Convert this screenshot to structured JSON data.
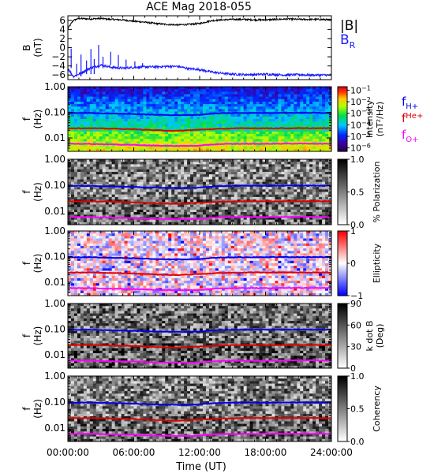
{
  "title": "ACE Mag 2018-055",
  "xlabel": "Time (UT)",
  "x_ticks": [
    "00:00:00",
    "06:00:00",
    "12:00:00",
    "18:00:00",
    "24:00:00"
  ],
  "colors": {
    "B_total": "#000000",
    "B_R": "#1a1aff",
    "f_H": "#0000ee",
    "f_He": "#e00000",
    "f_O": "#ff00ff"
  },
  "chart_data": [
    {
      "type": "line",
      "ylabel": "B",
      "yunit": "(nT)",
      "ylim": [
        -7,
        7
      ],
      "yticks": [
        "6",
        "4",
        "2",
        "0",
        "−2",
        "−4",
        "−6"
      ],
      "ytick_values": [
        6,
        4,
        2,
        0,
        -2,
        -4,
        -6
      ],
      "legend": [
        {
          "label": "|B|"
        },
        {
          "label": "B",
          "sub": "R"
        }
      ],
      "x_hours": [
        0,
        0.5,
        1,
        2,
        3,
        4,
        5,
        6,
        7,
        8,
        9,
        10,
        11,
        12,
        13,
        14,
        15,
        16,
        17,
        18,
        19,
        20,
        21,
        22,
        23,
        24
      ],
      "series": [
        {
          "values": [
            4.2,
            6.0,
            6.4,
            6.3,
            6.4,
            6.2,
            6.1,
            5.8,
            5.6,
            5.3,
            5.1,
            5.0,
            5.1,
            5.3,
            5.9,
            6.1,
            6.2,
            6.2,
            6.1,
            6.1,
            6.2,
            6.3,
            6.2,
            6.2,
            6.2,
            6.1
          ]
        },
        {
          "values": [
            -4.5,
            -6.3,
            -5.8,
            -4.5,
            -3.8,
            -4.3,
            -4.5,
            -4.3,
            -4.2,
            -4.2,
            -4.1,
            -4.1,
            -4.6,
            -4.8,
            -5.3,
            -5.6,
            -5.8,
            -5.9,
            -5.9,
            -5.8,
            -5.9,
            -6.0,
            -5.9,
            -6.0,
            -6.0,
            -6.0
          ]
        }
      ],
      "spikes": [
        {
          "x": 0.3,
          "y": -0.2
        },
        {
          "x": 0.8,
          "y": -3.5
        },
        {
          "x": 1.2,
          "y": -1.5
        },
        {
          "x": 1.7,
          "y": -2.8
        },
        {
          "x": 2.1,
          "y": -0.3
        },
        {
          "x": 2.4,
          "y": -2.5
        },
        {
          "x": 2.8,
          "y": 0.6
        },
        {
          "x": 3.2,
          "y": -2.0
        },
        {
          "x": 3.9,
          "y": -0.9
        },
        {
          "x": 4.6,
          "y": -1.6
        },
        {
          "x": 5.3,
          "y": -2.6
        },
        {
          "x": 6.1,
          "y": -3.0
        },
        {
          "x": 6.8,
          "y": -3.4
        }
      ]
    },
    {
      "type": "heatmap",
      "ylabel": "f",
      "yunit": "(Hz)",
      "yscale": "log",
      "ylim": [
        0.003,
        1.0
      ],
      "yticks": [
        "1.00",
        "0.10",
        "0.01"
      ],
      "ytick_values": [
        1.0,
        0.1,
        0.01
      ],
      "colorbar": {
        "label": "Intensity",
        "unit": "(nT²/Hz)",
        "scale": "log",
        "ticks": [
          {
            "base": "10",
            "exp": "−1",
            "value": 0.1
          },
          {
            "base": "10",
            "exp": "−2",
            "value": 0.01
          },
          {
            "base": "10",
            "exp": "−3",
            "value": 0.001
          },
          {
            "base": "10",
            "exp": "−4",
            "value": 0.0001
          },
          {
            "base": "10",
            "exp": "−5",
            "value": 1e-05
          },
          {
            "base": "10",
            "exp": "−6",
            "value": 1e-06
          }
        ],
        "range": [
          5e-07,
          0.2
        ],
        "palette": "rainbow"
      },
      "legend": [
        {
          "label": "f",
          "sub": "H+"
        },
        {
          "label": "f",
          "sup": "He+"
        },
        {
          "label": "f",
          "sub": "O+"
        }
      ]
    },
    {
      "type": "heatmap",
      "ylabel": "f",
      "yunit": "(Hz)",
      "yscale": "log",
      "ylim": [
        0.003,
        1.0
      ],
      "yticks": [
        "1.00",
        "0.10",
        "0.01"
      ],
      "ytick_values": [
        1.0,
        0.1,
        0.01
      ],
      "colorbar": {
        "label": "% Polarization",
        "unit": "",
        "ticks": [
          {
            "label": "1.0",
            "value": 1.0
          },
          {
            "label": "0.5",
            "value": 0.5
          },
          {
            "label": "0.0",
            "value": 0.0
          }
        ],
        "range": [
          0,
          1
        ],
        "palette": "gray"
      }
    },
    {
      "type": "heatmap",
      "ylabel": "f",
      "yunit": "(Hz)",
      "yscale": "log",
      "ylim": [
        0.003,
        1.0
      ],
      "yticks": [
        "1.00",
        "0.10",
        "0.01"
      ],
      "ytick_values": [
        1.0,
        0.1,
        0.01
      ],
      "colorbar": {
        "label": "Ellipticity",
        "unit": "",
        "ticks": [
          {
            "label": "1",
            "value": 1
          },
          {
            "label": "0",
            "value": 0
          },
          {
            "label": "−1",
            "value": -1
          }
        ],
        "range": [
          -1,
          1
        ],
        "palette": "bwr"
      }
    },
    {
      "type": "heatmap",
      "ylabel": "f",
      "yunit": "(Hz)",
      "yscale": "log",
      "ylim": [
        0.003,
        1.0
      ],
      "yticks": [
        "1.00",
        "0.10",
        "0.01"
      ],
      "ytick_values": [
        1.0,
        0.1,
        0.01
      ],
      "colorbar": {
        "label": "k dot B",
        "unit": "(Deg)",
        "ticks": [
          {
            "label": "90",
            "value": 90
          },
          {
            "label": "60",
            "value": 60
          },
          {
            "label": "30",
            "value": 30
          },
          {
            "label": "0",
            "value": 0
          }
        ],
        "range": [
          0,
          90
        ],
        "palette": "gray"
      }
    },
    {
      "type": "heatmap",
      "ylabel": "f",
      "yunit": "(Hz)",
      "yscale": "log",
      "ylim": [
        0.003,
        1.0
      ],
      "yticks": [
        "1.00",
        "0.10",
        "0.01"
      ],
      "ytick_values": [
        1.0,
        0.1,
        0.01
      ],
      "colorbar": {
        "label": "Coherency",
        "unit": "",
        "ticks": [
          {
            "label": "1.0",
            "value": 1.0
          },
          {
            "label": "0.5",
            "value": 0.5
          },
          {
            "label": "0.0",
            "value": 0.0
          }
        ],
        "range": [
          0,
          1
        ],
        "palette": "gray"
      }
    }
  ],
  "gyrofrequency_lines": {
    "x_hours": [
      0,
      2,
      4,
      6,
      8,
      10,
      11,
      12,
      13,
      14,
      16,
      18,
      20,
      22,
      24
    ],
    "f_H": [
      0.094,
      0.095,
      0.09,
      0.086,
      0.08,
      0.078,
      0.078,
      0.08,
      0.088,
      0.093,
      0.095,
      0.095,
      0.096,
      0.096,
      0.095
    ],
    "f_He": [
      0.024,
      0.024,
      0.023,
      0.022,
      0.02,
      0.019,
      0.02,
      0.021,
      0.022,
      0.023,
      0.024,
      0.024,
      0.024,
      0.024,
      0.024
    ],
    "f_O": [
      0.0059,
      0.0059,
      0.0056,
      0.0054,
      0.005,
      0.0049,
      0.0049,
      0.005,
      0.0055,
      0.0058,
      0.0059,
      0.0059,
      0.006,
      0.006,
      0.0059
    ]
  }
}
